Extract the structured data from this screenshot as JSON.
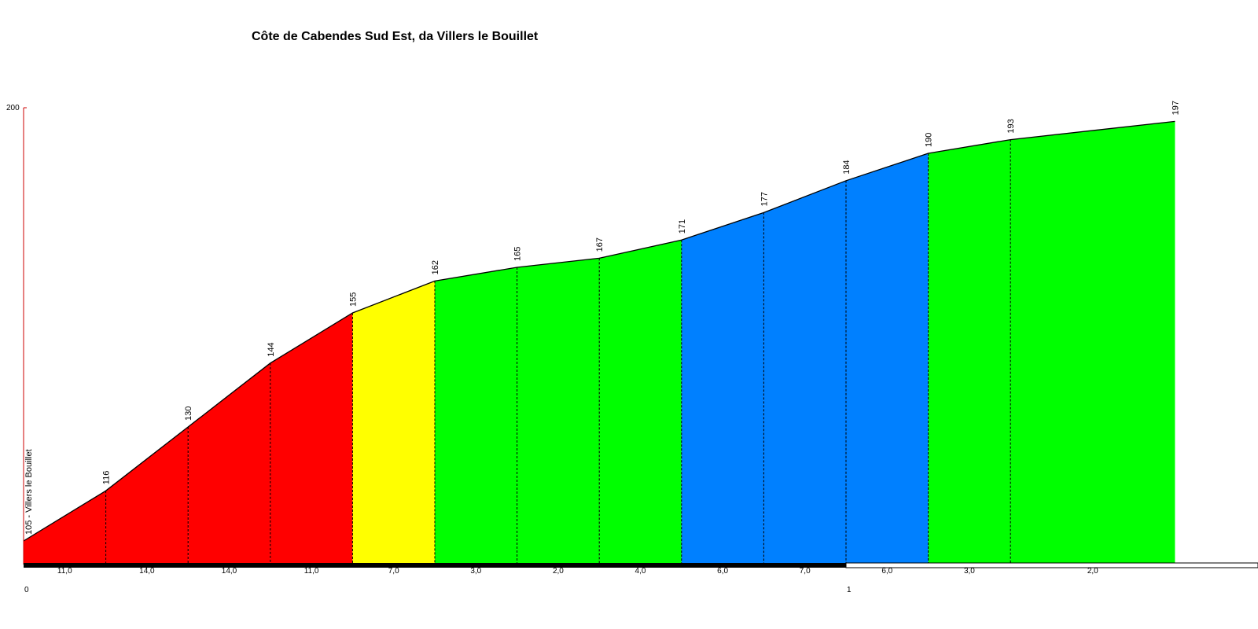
{
  "chart_data": {
    "type": "area",
    "title": "Côte de Cabendes Sud Est, da Villers le Bouillet",
    "xlabel": "",
    "ylabel": "",
    "ylim": [
      95,
      200
    ],
    "xlim": [
      0,
      1.47
    ],
    "y_ticks": [
      "200"
    ],
    "x_ticks": [
      {
        "value": 0,
        "label": "0"
      },
      {
        "value": 1,
        "label": "1"
      }
    ],
    "start_label": "105 - Villers le Bouillet",
    "points": [
      {
        "x": 0.0,
        "y": 105,
        "label": ""
      },
      {
        "x": 0.1,
        "y": 116,
        "label": "116"
      },
      {
        "x": 0.2,
        "y": 130,
        "label": "130"
      },
      {
        "x": 0.3,
        "y": 144,
        "label": "144"
      },
      {
        "x": 0.4,
        "y": 155,
        "label": "155"
      },
      {
        "x": 0.5,
        "y": 162,
        "label": "162"
      },
      {
        "x": 0.6,
        "y": 165,
        "label": "165"
      },
      {
        "x": 0.7,
        "y": 167,
        "label": "167"
      },
      {
        "x": 0.8,
        "y": 171,
        "label": "171"
      },
      {
        "x": 0.9,
        "y": 177,
        "label": "177"
      },
      {
        "x": 1.0,
        "y": 184,
        "label": "184"
      },
      {
        "x": 1.1,
        "y": 190,
        "label": "190"
      },
      {
        "x": 1.2,
        "y": 193,
        "label": "193"
      },
      {
        "x": 1.4,
        "y": 197,
        "label": "197"
      }
    ],
    "segments": [
      {
        "from": 0.0,
        "to": 0.1,
        "gradient": "11,0",
        "color": "#ff0000"
      },
      {
        "from": 0.1,
        "to": 0.2,
        "gradient": "14,0",
        "color": "#ff0000"
      },
      {
        "from": 0.2,
        "to": 0.3,
        "gradient": "14,0",
        "color": "#ff0000"
      },
      {
        "from": 0.3,
        "to": 0.4,
        "gradient": "11,0",
        "color": "#ff0000"
      },
      {
        "from": 0.4,
        "to": 0.5,
        "gradient": "7,0",
        "color": "#ffff00"
      },
      {
        "from": 0.5,
        "to": 0.6,
        "gradient": "3,0",
        "color": "#00ff00"
      },
      {
        "from": 0.6,
        "to": 0.7,
        "gradient": "2,0",
        "color": "#00ff00"
      },
      {
        "from": 0.7,
        "to": 0.8,
        "gradient": "4,0",
        "color": "#00ff00"
      },
      {
        "from": 0.8,
        "to": 0.9,
        "gradient": "6,0",
        "color": "#0080ff"
      },
      {
        "from": 0.9,
        "to": 1.0,
        "gradient": "7,0",
        "color": "#0080ff"
      },
      {
        "from": 1.0,
        "to": 1.1,
        "gradient": "6,0",
        "color": "#0080ff"
      },
      {
        "from": 1.1,
        "to": 1.2,
        "gradient": "3,0",
        "color": "#00ff00"
      },
      {
        "from": 1.2,
        "to": 1.4,
        "gradient": "2,0",
        "color": "#00ff00"
      }
    ],
    "colors": {
      "axis_red": "#cc0000",
      "outline": "#000000",
      "km_bar_dark": "#000000",
      "km_bar_light": "#ffffff"
    }
  }
}
